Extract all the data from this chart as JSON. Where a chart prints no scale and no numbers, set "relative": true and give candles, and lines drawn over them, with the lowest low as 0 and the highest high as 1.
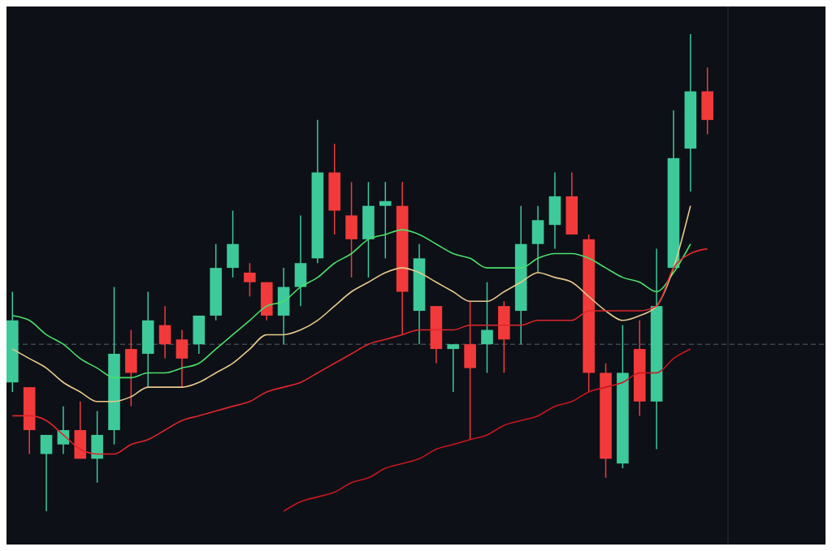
{
  "chart_data": {
    "type": "candlestick",
    "relative": true,
    "categories": [
      null,
      null,
      null,
      null,
      null,
      null,
      null,
      null,
      null,
      null,
      null,
      null,
      null,
      null,
      null,
      null,
      null,
      null,
      null,
      null,
      null,
      null,
      null,
      null,
      null,
      null,
      null,
      null,
      null,
      null,
      null,
      null,
      null,
      null,
      null,
      null,
      null,
      null,
      null,
      null,
      null,
      null
    ],
    "ohlc": [
      [
        0.27,
        0.46,
        0.25,
        0.4
      ],
      [
        0.26,
        0.26,
        0.12,
        0.17
      ],
      [
        0.12,
        0.16,
        0,
        0.16
      ],
      [
        0.14,
        0.22,
        0.12,
        0.17
      ],
      [
        0.17,
        0.23,
        0.11,
        0.11
      ],
      [
        0.11,
        0.21,
        0.06,
        0.16
      ],
      [
        0.17,
        0.47,
        0.14,
        0.33
      ],
      [
        0.34,
        0.38,
        0.22,
        0.29
      ],
      [
        0.33,
        0.46,
        0.26,
        0.4
      ],
      [
        0.39,
        0.43,
        0.32,
        0.35
      ],
      [
        0.36,
        0.38,
        0.26,
        0.32
      ],
      [
        0.35,
        0.41,
        0.33,
        0.41
      ],
      [
        0.41,
        0.56,
        0.4,
        0.51
      ],
      [
        0.51,
        0.63,
        0.49,
        0.56
      ],
      [
        0.5,
        0.52,
        0.45,
        0.48
      ],
      [
        0.48,
        0.48,
        0.4,
        0.41
      ],
      [
        0.41,
        0.51,
        0.35,
        0.47
      ],
      [
        0.47,
        0.62,
        0.43,
        0.52
      ],
      [
        0.53,
        0.82,
        0.52,
        0.71
      ],
      [
        0.71,
        0.77,
        0.58,
        0.63
      ],
      [
        0.62,
        0.69,
        0.49,
        0.57
      ],
      [
        0.57,
        0.69,
        0.49,
        0.64
      ],
      [
        0.64,
        0.69,
        0.53,
        0.65
      ],
      [
        0.64,
        0.69,
        0.37,
        0.46
      ],
      [
        0.42,
        0.56,
        0.35,
        0.53
      ],
      [
        0.43,
        0.43,
        0.31,
        0.34
      ],
      [
        0.34,
        0.35,
        0.25,
        0.35
      ],
      [
        0.35,
        0.44,
        0.15,
        0.3
      ],
      [
        0.35,
        0.48,
        0.29,
        0.38
      ],
      [
        0.43,
        0.44,
        0.29,
        0.36
      ],
      [
        0.42,
        0.64,
        0.35,
        0.56
      ],
      [
        0.56,
        0.64,
        0.5,
        0.61
      ],
      [
        0.6,
        0.71,
        0.55,
        0.66
      ],
      [
        0.66,
        0.71,
        0.58,
        0.58
      ],
      [
        0.57,
        0.58,
        0.25,
        0.29
      ],
      [
        0.29,
        0.31,
        0.07,
        0.11
      ],
      [
        0.1,
        0.39,
        0.09,
        0.29
      ],
      [
        0.34,
        0.4,
        0.2,
        0.23
      ],
      [
        0.23,
        0.55,
        0.13,
        0.43
      ],
      [
        0.51,
        0.84,
        0.51,
        0.74
      ],
      [
        0.76,
        1,
        0.67,
        0.88
      ],
      [
        0.88,
        0.93,
        0.79,
        0.82
      ]
    ],
    "series": [
      {
        "type": "line",
        "color": "#4be06a",
        "values": [
          0.41,
          0.4,
          0.37,
          0.35,
          0.32,
          0.3,
          0.28,
          0.28,
          0.29,
          0.29,
          0.3,
          0.31,
          0.34,
          0.37,
          0.4,
          0.43,
          0.44,
          0.47,
          0.49,
          0.52,
          0.54,
          0.57,
          0.58,
          0.59,
          0.58,
          0.56,
          0.54,
          0.53,
          0.51,
          0.51,
          0.51,
          0.53,
          0.54,
          0.54,
          0.53,
          0.51,
          0.49,
          0.48,
          0.46,
          0.5,
          0.56,
          null
        ]
      },
      {
        "type": "line",
        "color": "#e8c98a",
        "values": [
          0.34,
          0.32,
          0.3,
          0.27,
          0.25,
          0.23,
          0.23,
          0.24,
          0.26,
          0.26,
          0.26,
          0.27,
          0.29,
          0.31,
          0.34,
          0.37,
          0.37,
          0.38,
          0.4,
          0.43,
          0.46,
          0.48,
          0.5,
          0.51,
          0.5,
          0.48,
          0.46,
          0.44,
          0.44,
          0.46,
          0.48,
          0.5,
          0.49,
          0.48,
          0.45,
          0.42,
          0.4,
          0.41,
          0.43,
          0.51,
          0.64,
          null
        ]
      },
      {
        "type": "line",
        "color": "#e0262a",
        "values": [
          0.2,
          0.2,
          0.19,
          0.16,
          0.13,
          0.12,
          0.12,
          0.14,
          0.15,
          0.17,
          0.19,
          0.2,
          0.21,
          0.22,
          0.23,
          0.25,
          0.26,
          0.27,
          0.29,
          0.31,
          0.33,
          0.35,
          0.36,
          0.37,
          0.38,
          0.38,
          0.38,
          0.39,
          0.39,
          0.39,
          0.39,
          0.4,
          0.4,
          0.4,
          0.42,
          0.42,
          0.42,
          0.42,
          0.43,
          0.51,
          0.54,
          0.55
        ]
      },
      {
        "type": "line",
        "color": "#c8161e",
        "values": [
          null,
          null,
          null,
          null,
          null,
          null,
          null,
          null,
          null,
          null,
          null,
          null,
          null,
          null,
          null,
          null,
          0.0,
          0.02,
          0.03,
          0.04,
          0.06,
          0.07,
          0.09,
          0.1,
          0.11,
          0.13,
          0.14,
          0.15,
          0.16,
          0.18,
          0.19,
          0.2,
          0.22,
          0.23,
          0.25,
          0.26,
          0.27,
          0.29,
          0.29,
          0.32,
          0.34,
          null
        ]
      }
    ],
    "ref_lines": [
      {
        "axis": "y",
        "value": 0.35,
        "color": "#5a6070",
        "line_style": "dashed"
      }
    ]
  }
}
